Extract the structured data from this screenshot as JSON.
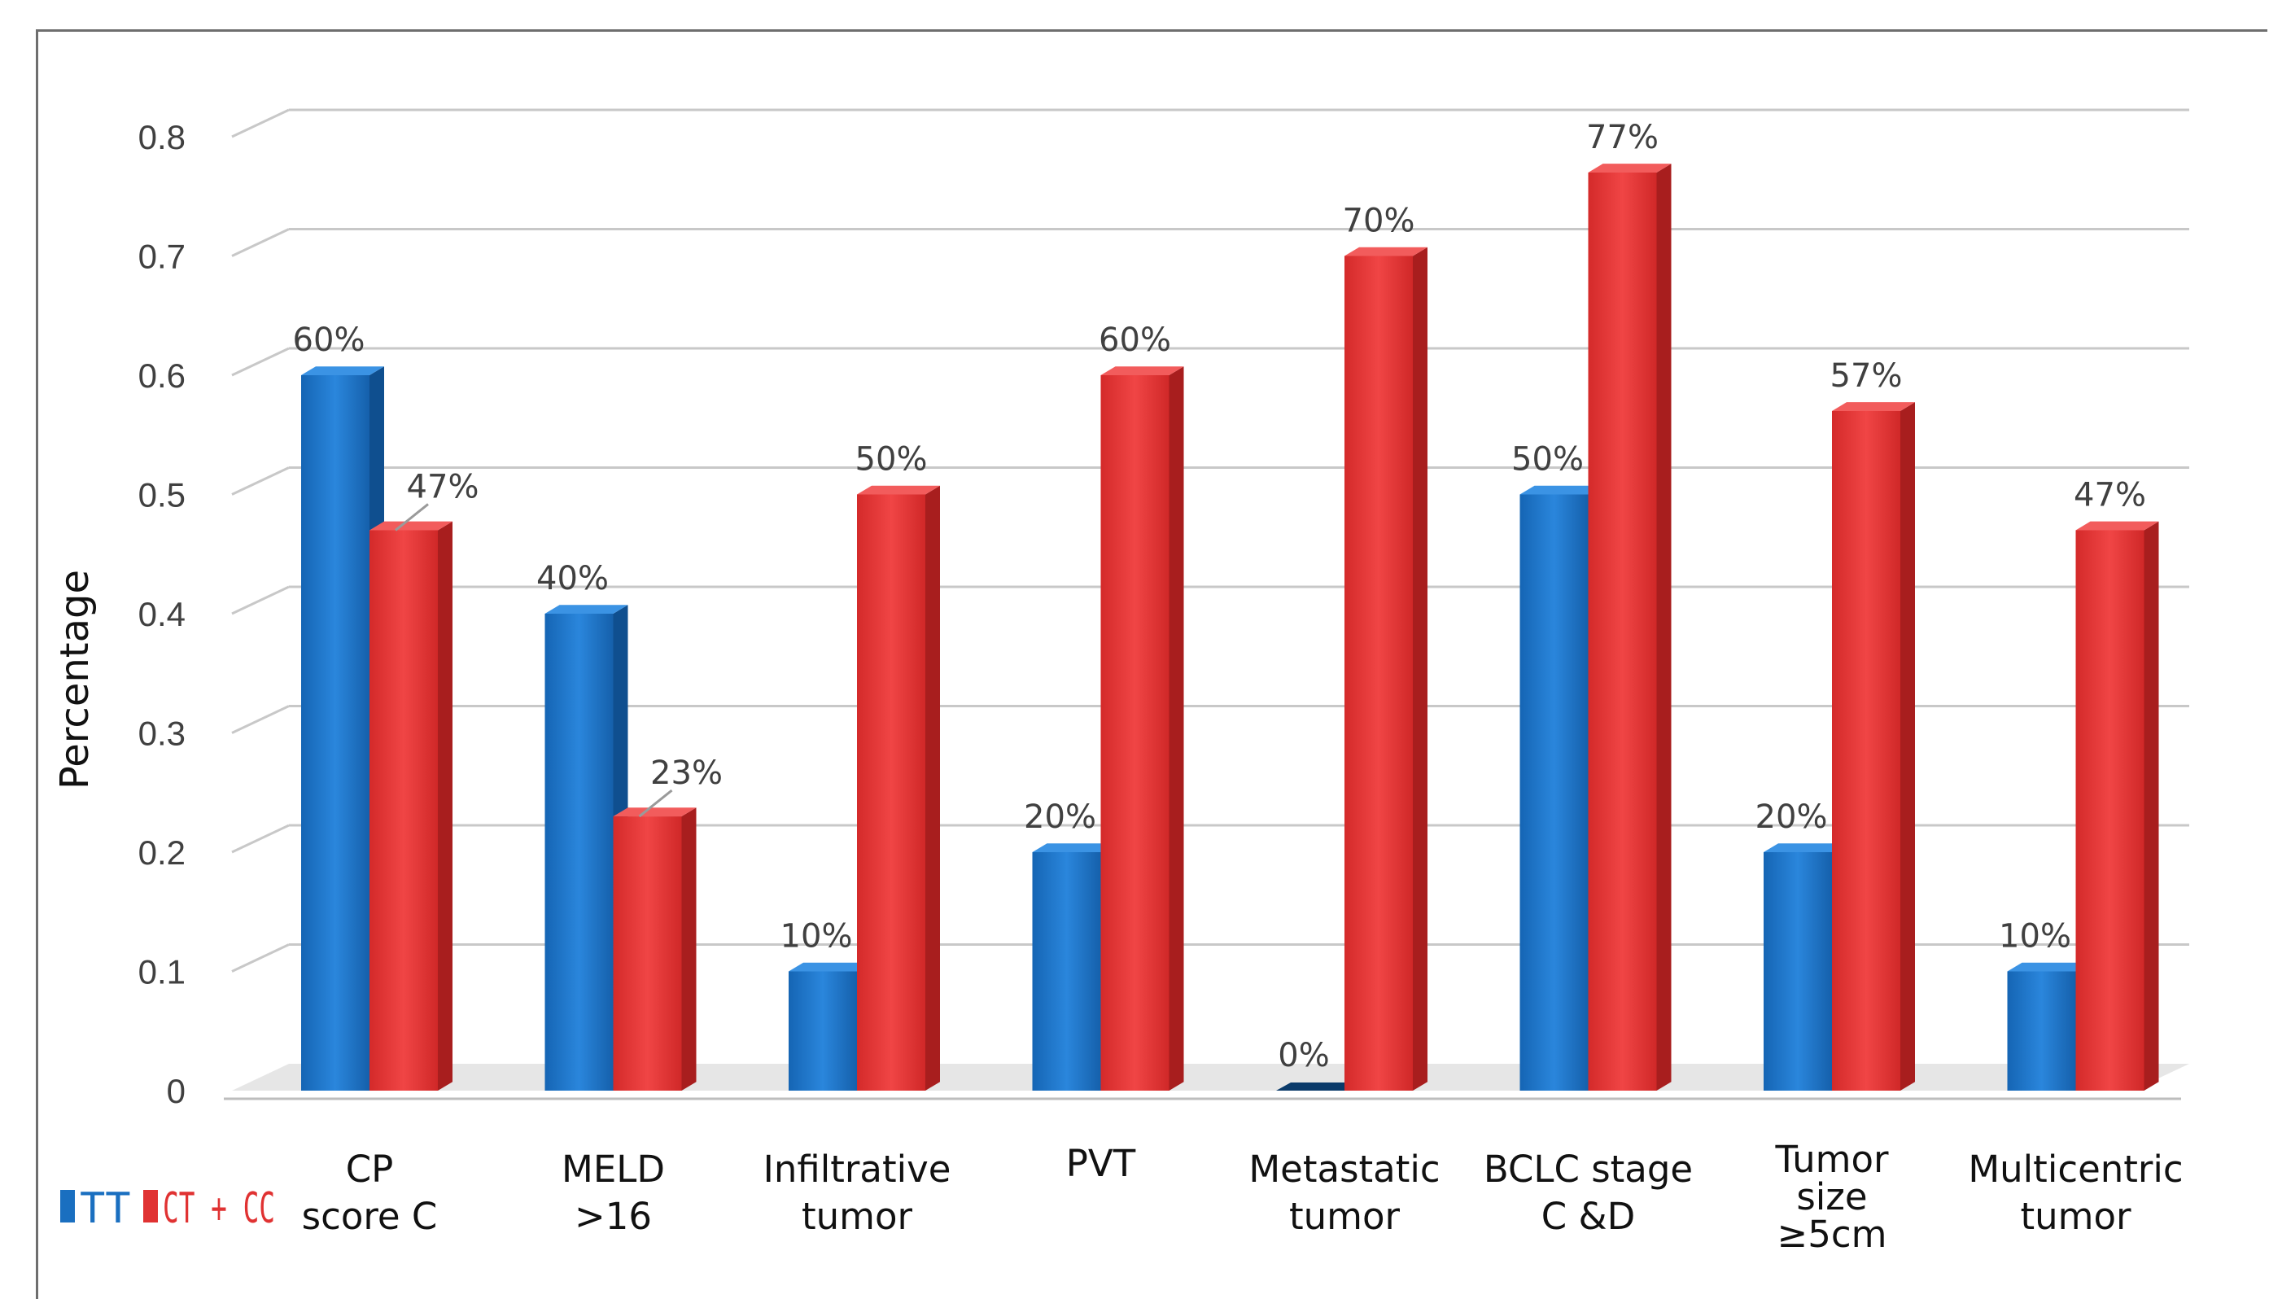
{
  "chart_data": {
    "type": "bar",
    "title": "",
    "xlabel": "",
    "ylabel": "Percentage",
    "ylim": [
      0,
      0.8
    ],
    "yticks": [
      "0",
      "0.1",
      "0.2",
      "0.3",
      "0.4",
      "0.5",
      "0.6",
      "0.7",
      "0.8"
    ],
    "grid": true,
    "legend_position": "bottom-left",
    "categories": [
      [
        "CP",
        "score C"
      ],
      [
        "MELD",
        ">16"
      ],
      [
        "Infiltrative",
        "tumor"
      ],
      [
        "PVT"
      ],
      [
        "Metastatic",
        "tumor"
      ],
      [
        "BCLC stage",
        "C &D"
      ],
      [
        "Tumor",
        "size",
        "≥5cm"
      ],
      [
        "Multicentric",
        "tumor"
      ]
    ],
    "series": [
      {
        "name": "TT",
        "color": "#1a6fc0",
        "values": [
          0.6,
          0.4,
          0.1,
          0.2,
          0.0,
          0.5,
          0.2,
          0.1
        ],
        "labels": [
          "60%",
          "40%",
          "10%",
          "20%",
          "0%",
          "50%",
          "20%",
          "10%"
        ]
      },
      {
        "name": "CT + CC",
        "color": "#e03232",
        "values": [
          0.47,
          0.23,
          0.5,
          0.6,
          0.7,
          0.77,
          0.57,
          0.47
        ],
        "labels": [
          "47%",
          "23%",
          "50%",
          "60%",
          "70%",
          "77%",
          "57%",
          "47%"
        ]
      }
    ]
  }
}
